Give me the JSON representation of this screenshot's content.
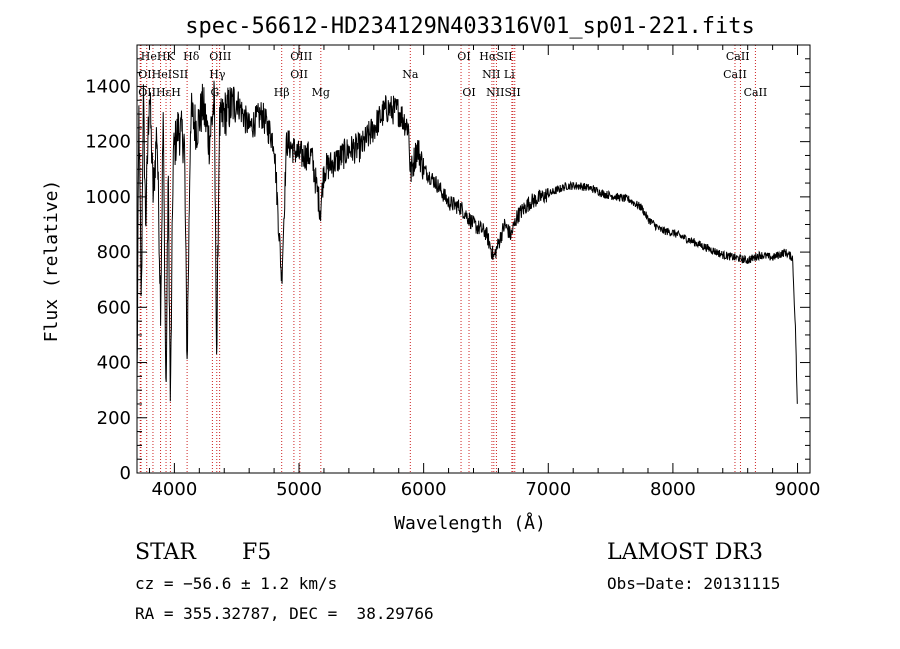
{
  "chart_data": {
    "type": "line",
    "title": "spec-56612-HD234129N403316V01_sp01-221.fits",
    "xlabel": "Wavelength (Å)",
    "ylabel": "Flux (relative)",
    "xlim": [
      3700,
      9100
    ],
    "ylim": [
      0,
      1550
    ],
    "xticks": [
      "4000",
      "5000",
      "6000",
      "7000",
      "8000",
      "9000"
    ],
    "yticks": [
      "0",
      "200",
      "400",
      "600",
      "800",
      "1000",
      "1200",
      "1400"
    ],
    "xtick_values": [
      4000,
      5000,
      6000,
      7000,
      8000,
      9000
    ],
    "ytick_values": [
      0,
      200,
      400,
      600,
      800,
      1000,
      1200,
      1400
    ],
    "series": [
      {
        "name": "spectrum",
        "anchors": [
          [
            3700,
            300
          ],
          [
            3715,
            1300
          ],
          [
            3735,
            600
          ],
          [
            3750,
            1380
          ],
          [
            3770,
            900
          ],
          [
            3800,
            1400
          ],
          [
            3830,
            1000
          ],
          [
            3860,
            1250
          ],
          [
            3890,
            600
          ],
          [
            3910,
            1300
          ],
          [
            3933,
            250
          ],
          [
            3950,
            1100
          ],
          [
            3968,
            230
          ],
          [
            3990,
            1150
          ],
          [
            4030,
            1250
          ],
          [
            4080,
            1200
          ],
          [
            4102,
            400
          ],
          [
            4130,
            1300
          ],
          [
            4180,
            1250
          ],
          [
            4230,
            1330
          ],
          [
            4280,
            1200
          ],
          [
            4320,
            1350
          ],
          [
            4340,
            400
          ],
          [
            4360,
            1250
          ],
          [
            4400,
            1300
          ],
          [
            4500,
            1350
          ],
          [
            4600,
            1250
          ],
          [
            4700,
            1300
          ],
          [
            4800,
            1200
          ],
          [
            4861,
            700
          ],
          [
            4900,
            1200
          ],
          [
            5000,
            1150
          ],
          [
            5100,
            1150
          ],
          [
            5172,
            950
          ],
          [
            5200,
            1100
          ],
          [
            5300,
            1130
          ],
          [
            5400,
            1170
          ],
          [
            5500,
            1180
          ],
          [
            5600,
            1250
          ],
          [
            5700,
            1320
          ],
          [
            5800,
            1310
          ],
          [
            5880,
            1250
          ],
          [
            5893,
            1080
          ],
          [
            5950,
            1180
          ],
          [
            6000,
            1100
          ],
          [
            6100,
            1050
          ],
          [
            6200,
            980
          ],
          [
            6300,
            960
          ],
          [
            6400,
            900
          ],
          [
            6500,
            870
          ],
          [
            6563,
            780
          ],
          [
            6650,
            900
          ],
          [
            6700,
            860
          ],
          [
            6750,
            930
          ],
          [
            6850,
            980
          ],
          [
            6950,
            1000
          ],
          [
            7050,
            1020
          ],
          [
            7150,
            1040
          ],
          [
            7250,
            1040
          ],
          [
            7350,
            1030
          ],
          [
            7450,
            1010
          ],
          [
            7550,
            1000
          ],
          [
            7650,
            990
          ],
          [
            7750,
            960
          ],
          [
            7800,
            920
          ],
          [
            7900,
            880
          ],
          [
            8000,
            870
          ],
          [
            8100,
            850
          ],
          [
            8200,
            830
          ],
          [
            8300,
            810
          ],
          [
            8400,
            790
          ],
          [
            8500,
            780
          ],
          [
            8600,
            770
          ],
          [
            8700,
            790
          ],
          [
            8800,
            780
          ],
          [
            8900,
            800
          ],
          [
            8960,
            780
          ],
          [
            8985,
            500
          ],
          [
            9000,
            200
          ]
        ]
      }
    ],
    "lines": [
      {
        "label": "Hε",
        "x": 3726,
        "row": 1
      },
      {
        "label": "H9",
        "x": 3732,
        "row": 1
      },
      {
        "label": "K",
        "x": 3778,
        "row": 1
      },
      {
        "label": "H",
        "x": 3828,
        "row": 1
      },
      {
        "label": "Hδ",
        "x": 3889,
        "row": 1
      },
      {
        "label": "OII",
        "x": 3933,
        "row": 1
      },
      {
        "label": "OII",
        "x": 3968,
        "row": 1
      },
      {
        "label": "CaII",
        "x": 4102,
        "row": 1
      },
      {
        "label": "OIII",
        "x": 4305,
        "row": 1
      },
      {
        "label": "Hγ",
        "x": 4340,
        "row": 1
      },
      {
        "label": "G",
        "x": 4363,
        "row": 1
      },
      {
        "label": "Hβ",
        "x": 4861,
        "row": 1
      },
      {
        "label": "OIII",
        "x": 4959,
        "row": 1
      },
      {
        "label": "OIII",
        "x": 5007,
        "row": 1
      },
      {
        "label": "Mg",
        "x": 5175,
        "row": 1
      },
      {
        "label": "Na",
        "x": 5893,
        "row": 1
      },
      {
        "label": "OI",
        "x": 6300,
        "row": 1
      },
      {
        "label": "OI",
        "x": 6364,
        "row": 1
      },
      {
        "label": "NII",
        "x": 6548,
        "row": 1
      },
      {
        "label": "Hα",
        "x": 6563,
        "row": 1
      },
      {
        "label": "NII",
        "x": 6584,
        "row": 1
      },
      {
        "label": "Li",
        "x": 6708,
        "row": 1
      },
      {
        "label": "SII",
        "x": 6716,
        "row": 1
      },
      {
        "label": "SII",
        "x": 6731,
        "row": 1
      },
      {
        "label": "CaII",
        "x": 8498,
        "row": 1
      },
      {
        "label": "CaII",
        "x": 8542,
        "row": 1
      },
      {
        "label": "CaII",
        "x": 8662,
        "row": 1
      }
    ],
    "line_labels": [
      {
        "text": "HeHK",
        "x": 3730,
        "row": 0,
        "align": "left"
      },
      {
        "text": "Hδ",
        "x": 4070,
        "row": 0,
        "align": "left"
      },
      {
        "text": "OIII",
        "x": 4280,
        "row": 0,
        "align": "left"
      },
      {
        "text": "OIII",
        "x": 4930,
        "row": 0,
        "align": "left"
      },
      {
        "text": "OI",
        "x": 6270,
        "row": 0,
        "align": "left"
      },
      {
        "text": "HαSII",
        "x": 6580,
        "row": 0,
        "align": "center"
      },
      {
        "text": "CaII",
        "x": 8520,
        "row": 0,
        "align": "center"
      },
      {
        "text": "OIHeISII",
        "x": 3710,
        "row": 1,
        "align": "left"
      },
      {
        "text": "Hγ",
        "x": 4280,
        "row": 1,
        "align": "left"
      },
      {
        "text": "OII",
        "x": 4930,
        "row": 1,
        "align": "left"
      },
      {
        "text": "Na",
        "x": 5893,
        "row": 1,
        "align": "center"
      },
      {
        "text": "NII Li",
        "x": 6600,
        "row": 1,
        "align": "center"
      },
      {
        "text": "CaII",
        "x": 8498,
        "row": 1,
        "align": "center"
      },
      {
        "text": "OIIHεH",
        "x": 3710,
        "row": 2,
        "align": "left"
      },
      {
        "text": "G",
        "x": 4290,
        "row": 2,
        "align": "left"
      },
      {
        "text": "Hβ",
        "x": 4861,
        "row": 2,
        "align": "center"
      },
      {
        "text": "Mg",
        "x": 5175,
        "row": 2,
        "align": "center"
      },
      {
        "text": "OI",
        "x": 6364,
        "row": 2,
        "align": "center"
      },
      {
        "text": "NIISII",
        "x": 6640,
        "row": 2,
        "align": "center"
      },
      {
        "text": "CaII",
        "x": 8662,
        "row": 2,
        "align": "center"
      }
    ]
  },
  "info": {
    "object_class": "STAR",
    "subclass": "F5",
    "survey": "LAMOST DR3",
    "cz": "cz = −56.6 ± 1.2 km/s",
    "obs_date": "Obs−Date: 20131115",
    "coords": "RA = 355.32787, DEC =  38.29766"
  },
  "colors": {
    "spectrum": "#000000",
    "line_markers": "#cc2222",
    "axes": "#000000"
  }
}
